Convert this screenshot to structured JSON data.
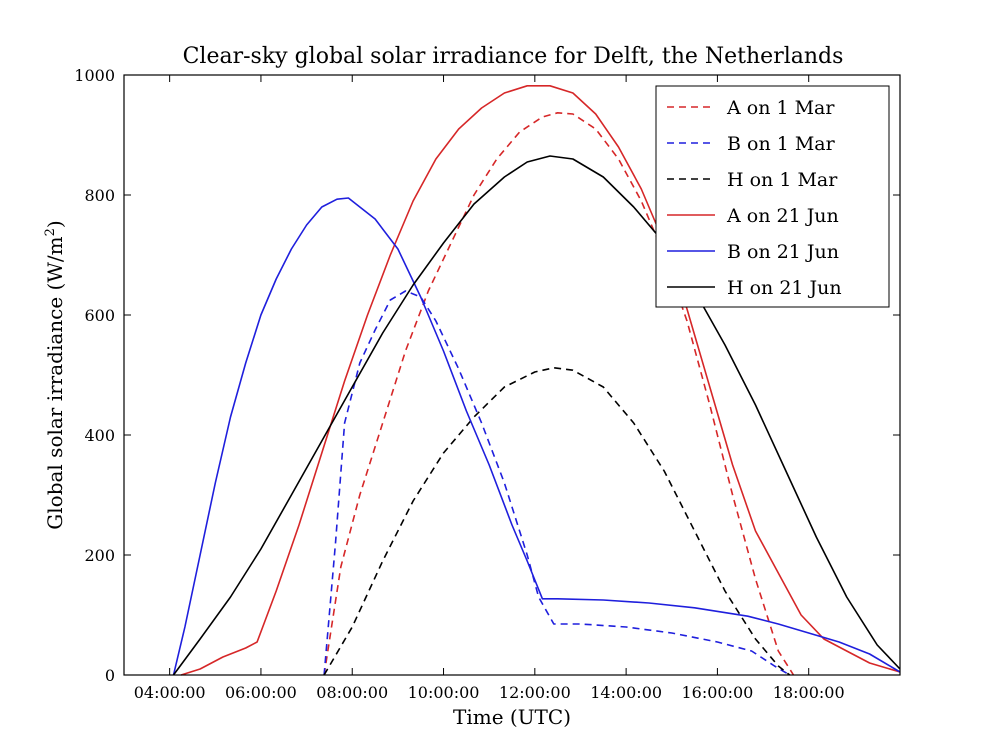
{
  "chart_data": {
    "type": "line",
    "title": "Clear-sky global solar irradiance for Delft, the Netherlands",
    "xlabel": "Time (UTC)",
    "ylabel_main": "Global solar irradiance (W/m",
    "ylabel_sup": "2",
    "ylabel_close": ")",
    "xlim": [
      "03:00:00",
      "20:00:00"
    ],
    "ylim": [
      0,
      1000
    ],
    "xticks": [
      "04:00:00",
      "06:00:00",
      "08:00:00",
      "10:00:00",
      "12:00:00",
      "14:00:00",
      "16:00:00",
      "18:00:00"
    ],
    "yticks": [
      0,
      200,
      400,
      600,
      800,
      1000
    ],
    "grid": false,
    "legend_position": "top-right",
    "series": [
      {
        "name": "A on 1 Mar",
        "color": "#d62728",
        "dash": "dashed",
        "x": [
          "07:23:00",
          "07:45:00",
          "08:10:00",
          "08:40:00",
          "09:10:00",
          "09:40:00",
          "10:10:00",
          "10:40:00",
          "11:10:00",
          "11:40:00",
          "12:10:00",
          "12:30:00",
          "12:50:00",
          "13:20:00",
          "13:50:00",
          "14:20:00",
          "14:50:00",
          "15:20:00",
          "15:50:00",
          "16:20:00",
          "16:50:00",
          "17:20:00",
          "17:40:00"
        ],
        "y": [
          0,
          180,
          300,
          420,
          540,
          640,
          720,
          800,
          860,
          905,
          930,
          937,
          935,
          910,
          860,
          790,
          700,
          590,
          450,
          300,
          160,
          40,
          0
        ]
      },
      {
        "name": "B on 1 Mar",
        "color": "#1f1fdd",
        "dash": "dashed",
        "x": [
          "07:23:00",
          "07:38:00",
          "07:50:00",
          "08:10:00",
          "08:30:00",
          "08:50:00",
          "09:10:00",
          "09:30:00",
          "09:50:00",
          "10:20:00",
          "10:50:00",
          "11:20:00",
          "11:50:00",
          "12:05:00",
          "12:25:00",
          "13:00:00",
          "14:00:00",
          "15:00:00",
          "16:00:00",
          "16:45:00",
          "17:15:00",
          "17:35:00"
        ],
        "y": [
          0,
          220,
          420,
          520,
          575,
          625,
          640,
          630,
          590,
          510,
          420,
          320,
          200,
          130,
          85,
          85,
          80,
          70,
          55,
          40,
          15,
          0
        ]
      },
      {
        "name": "H on 1 Mar",
        "color": "#000000",
        "dash": "dashed",
        "x": [
          "07:23:00",
          "08:00:00",
          "08:40:00",
          "09:20:00",
          "10:00:00",
          "10:40:00",
          "11:20:00",
          "12:00:00",
          "12:25:00",
          "12:50:00",
          "13:30:00",
          "14:10:00",
          "14:50:00",
          "15:30:00",
          "16:10:00",
          "16:50:00",
          "17:20:00",
          "17:35:00"
        ],
        "y": [
          0,
          80,
          190,
          290,
          370,
          430,
          480,
          505,
          512,
          508,
          480,
          420,
          340,
          240,
          140,
          60,
          15,
          0
        ]
      },
      {
        "name": "A on 21 Jun",
        "color": "#d62728",
        "dash": "solid",
        "x": [
          "04:15:00",
          "04:40:00",
          "05:10:00",
          "05:40:00",
          "05:55:00",
          "06:20:00",
          "06:50:00",
          "07:20:00",
          "07:50:00",
          "08:20:00",
          "08:50:00",
          "09:20:00",
          "09:50:00",
          "10:20:00",
          "10:50:00",
          "11:20:00",
          "11:50:00",
          "12:20:00",
          "12:50:00",
          "13:20:00",
          "13:50:00",
          "14:20:00",
          "14:50:00",
          "15:20:00",
          "15:50:00",
          "16:20:00",
          "16:50:00",
          "17:20:00",
          "17:50:00",
          "18:20:00",
          "18:50:00",
          "19:20:00",
          "20:00:00"
        ],
        "y": [
          0,
          10,
          30,
          45,
          55,
          140,
          250,
          370,
          490,
          600,
          700,
          790,
          860,
          910,
          945,
          970,
          982,
          982,
          970,
          935,
          880,
          810,
          720,
          610,
          480,
          350,
          240,
          170,
          100,
          60,
          40,
          20,
          5
        ]
      },
      {
        "name": "B on 21 Jun",
        "color": "#1f1fdd",
        "dash": "solid",
        "x": [
          "04:05:00",
          "04:20:00",
          "04:40:00",
          "05:00:00",
          "05:20:00",
          "05:40:00",
          "06:00:00",
          "06:20:00",
          "06:40:00",
          "07:00:00",
          "07:20:00",
          "07:40:00",
          "07:55:00",
          "08:05:00",
          "08:30:00",
          "09:00:00",
          "09:30:00",
          "10:00:00",
          "10:30:00",
          "11:00:00",
          "11:30:00",
          "11:50:00",
          "12:10:00",
          "12:30:00",
          "13:30:00",
          "14:30:00",
          "15:30:00",
          "16:40:00",
          "17:20:00",
          "18:00:00",
          "18:40:00",
          "19:20:00",
          "20:00:00"
        ],
        "y": [
          0,
          80,
          200,
          320,
          430,
          520,
          600,
          660,
          710,
          750,
          780,
          793,
          795,
          785,
          760,
          710,
          630,
          540,
          440,
          350,
          250,
          190,
          127,
          127,
          125,
          120,
          112,
          98,
          85,
          70,
          55,
          35,
          5
        ]
      },
      {
        "name": "H on 21 Jun",
        "color": "#000000",
        "dash": "solid",
        "x": [
          "04:05:00",
          "04:40:00",
          "05:20:00",
          "06:00:00",
          "06:40:00",
          "07:20:00",
          "08:00:00",
          "08:40:00",
          "09:20:00",
          "10:00:00",
          "10:40:00",
          "11:20:00",
          "11:50:00",
          "12:20:00",
          "12:50:00",
          "13:30:00",
          "14:10:00",
          "14:50:00",
          "15:30:00",
          "16:10:00",
          "16:50:00",
          "17:30:00",
          "18:10:00",
          "18:50:00",
          "19:30:00",
          "20:00:00"
        ],
        "y": [
          0,
          60,
          130,
          210,
          300,
          390,
          480,
          570,
          650,
          720,
          785,
          830,
          855,
          865,
          860,
          830,
          780,
          720,
          640,
          550,
          450,
          340,
          230,
          130,
          50,
          10
        ]
      }
    ]
  }
}
